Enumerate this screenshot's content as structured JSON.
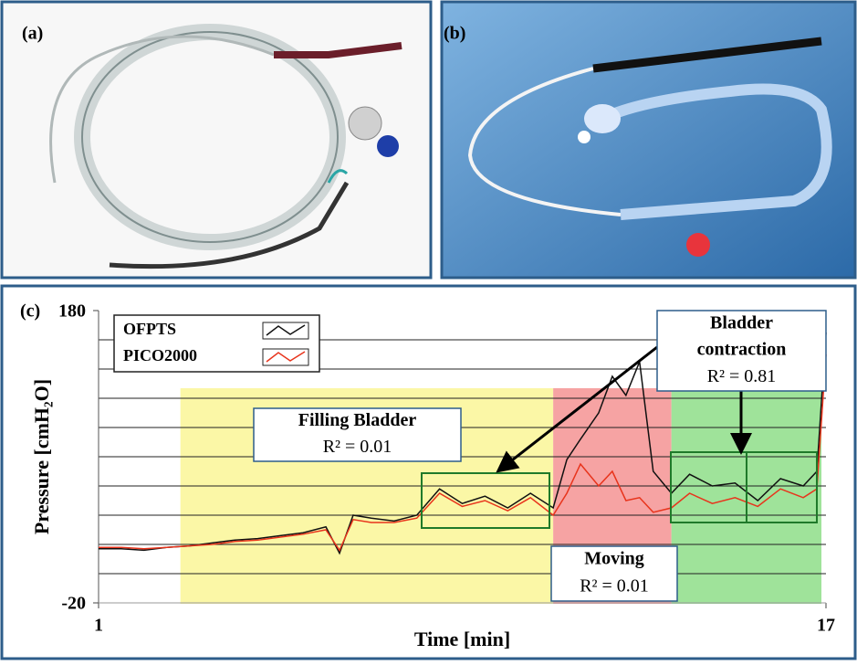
{
  "panel_labels": [
    "(a)",
    "(b)",
    "(c)"
  ],
  "chart_data": {
    "type": "line",
    "xlabel": "Time [min]",
    "ylabel": "Pressure [cmH₂O]",
    "xlim": [
      1,
      17
    ],
    "xticks": [
      1,
      17
    ],
    "ylim": [
      -20,
      180
    ],
    "yticks": [
      -20,
      180
    ],
    "minor_yticks": [
      0,
      20,
      40,
      60,
      80,
      100,
      120,
      140,
      160
    ],
    "grid": true,
    "x": [
      1,
      1.5,
      2,
      2.5,
      3,
      3.5,
      4,
      4.5,
      5,
      5.5,
      6,
      6.3,
      6.6,
      7,
      7.5,
      8,
      8.5,
      9,
      9.5,
      10,
      10.5,
      11,
      11.3,
      11.6,
      12,
      12.3,
      12.6,
      12.9,
      13.2,
      13.6,
      14,
      14.5,
      15,
      15.5,
      16,
      16.5,
      16.8,
      17
    ],
    "series": [
      {
        "name": "OFPTS",
        "color": "#111111",
        "values": [
          17,
          17,
          16,
          18,
          19,
          21,
          23,
          24,
          26,
          28,
          32,
          14,
          40,
          38,
          36,
          40,
          58,
          48,
          53,
          45,
          55,
          45,
          78,
          92,
          110,
          135,
          122,
          145,
          70,
          55,
          68,
          60,
          62,
          50,
          65,
          60,
          70,
          165
        ]
      },
      {
        "name": "PICO2000",
        "color": "#e8341c",
        "values": [
          18,
          18,
          17,
          18,
          19,
          20,
          22,
          23,
          25,
          27,
          30,
          16,
          37,
          35,
          35,
          38,
          55,
          46,
          50,
          43,
          52,
          40,
          55,
          75,
          60,
          70,
          50,
          52,
          42,
          45,
          55,
          48,
          52,
          46,
          58,
          52,
          58,
          150
        ]
      }
    ],
    "regions": [
      {
        "x0": 2.8,
        "x1": 11,
        "color": "#fbf7a6"
      },
      {
        "x0": 11,
        "x1": 13.6,
        "color": "#f6a3a3"
      },
      {
        "x0": 13.6,
        "x1": 16.9,
        "color": "#9fe39a"
      }
    ],
    "annotations": [
      {
        "lines": [
          "Filling Bladder",
          "R² = 0.01"
        ]
      },
      {
        "lines": [
          "Bladder",
          "contraction",
          "R² = 0.81"
        ]
      },
      {
        "lines": [
          "Moving",
          "R² = 0.01"
        ]
      }
    ]
  }
}
